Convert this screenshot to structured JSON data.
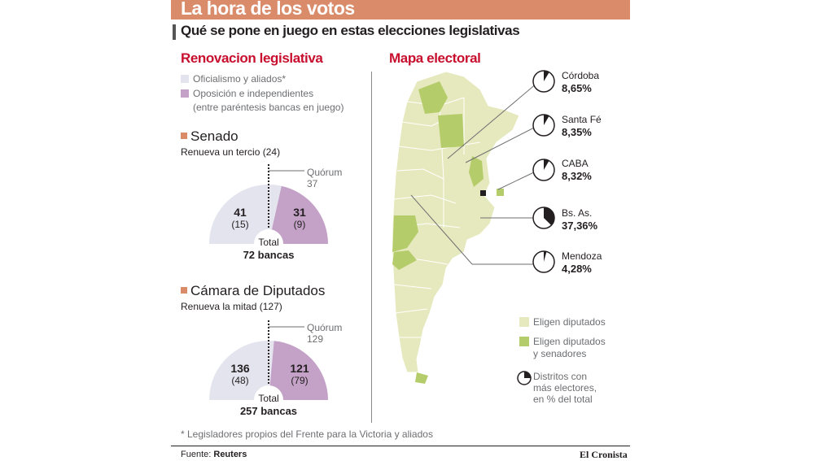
{
  "header": {
    "title": "La hora de los votos",
    "subtitle": "Qué se pone en juego en estas elecciones legislativas"
  },
  "colors": {
    "title_bar": "#d98b6a",
    "section_head": "#c8102e",
    "oficialismo": "#e4e4ef",
    "oposicion": "#c4a2c8",
    "map_diputados": "#e6e9bd",
    "map_diputados_senadores": "#b5cc6b"
  },
  "renovacion": {
    "heading": "Renovacion legislativa",
    "legend": [
      {
        "label": "Oficialismo y aliados*",
        "color": "#e4e4ef"
      },
      {
        "label": "Oposición e independientes",
        "note": "(entre paréntesis bancas en juego)",
        "color": "#c4a2c8"
      }
    ]
  },
  "chart_data": [
    {
      "type": "pie",
      "name": "Senado",
      "title": "Senado",
      "subtitle": "Renueva un tercio (24)",
      "quorum_label": "Quórum",
      "quorum_value": 37,
      "total_label": "Total",
      "total_value": "72 bancas",
      "total": 72,
      "slices": [
        {
          "group": "Oficialismo y aliados",
          "value": 41,
          "label": "41",
          "in_play": "(15)",
          "color": "#e4e4ef"
        },
        {
          "group": "Oposición e independientes",
          "value": 31,
          "label": "31",
          "in_play": "(9)",
          "color": "#c4a2c8"
        }
      ]
    },
    {
      "type": "pie",
      "name": "Cámara de Diputados",
      "title": "Cámara de Diputados",
      "subtitle": "Renueva la mitad (127)",
      "quorum_label": "Quórum",
      "quorum_value": 129,
      "total_label": "Total",
      "total_value": "257 bancas",
      "total": 257,
      "slices": [
        {
          "group": "Oficialismo y aliados",
          "value": 136,
          "label": "136",
          "in_play": "(48)",
          "color": "#e4e4ef"
        },
        {
          "group": "Oposición e independientes",
          "value": 121,
          "label": "121",
          "in_play": "(79)",
          "color": "#c4a2c8"
        }
      ]
    },
    {
      "type": "pie",
      "name": "Distritos con más electores",
      "provinces": [
        {
          "name": "Córdoba",
          "value": 8.65,
          "label": "8,65%"
        },
        {
          "name": "Santa Fé",
          "value": 8.35,
          "label": "8,35%"
        },
        {
          "name": "CABA",
          "value": 8.32,
          "label": "8,32%"
        },
        {
          "name": "Bs. As.",
          "value": 37.36,
          "label": "37,36%"
        },
        {
          "name": "Mendoza",
          "value": 4.28,
          "label": "4,28%"
        }
      ]
    }
  ],
  "map": {
    "heading": "Mapa electoral",
    "legend": [
      {
        "label": "Eligen diputados",
        "color": "#e6e9bd"
      },
      {
        "label_1": "Eligen diputados",
        "label_2": "y senadores",
        "color": "#b5cc6b"
      },
      {
        "label_1": "Distritos con",
        "label_2": "más electores,",
        "label_3": "en % del total",
        "icon": "pie-chart-icon"
      }
    ]
  },
  "footnote": "* Legisladores propios del Frente para la Victoria y aliados",
  "footer": {
    "source_label": "Fuente:",
    "source_value": "Reuters",
    "brand": "El Cronista"
  }
}
